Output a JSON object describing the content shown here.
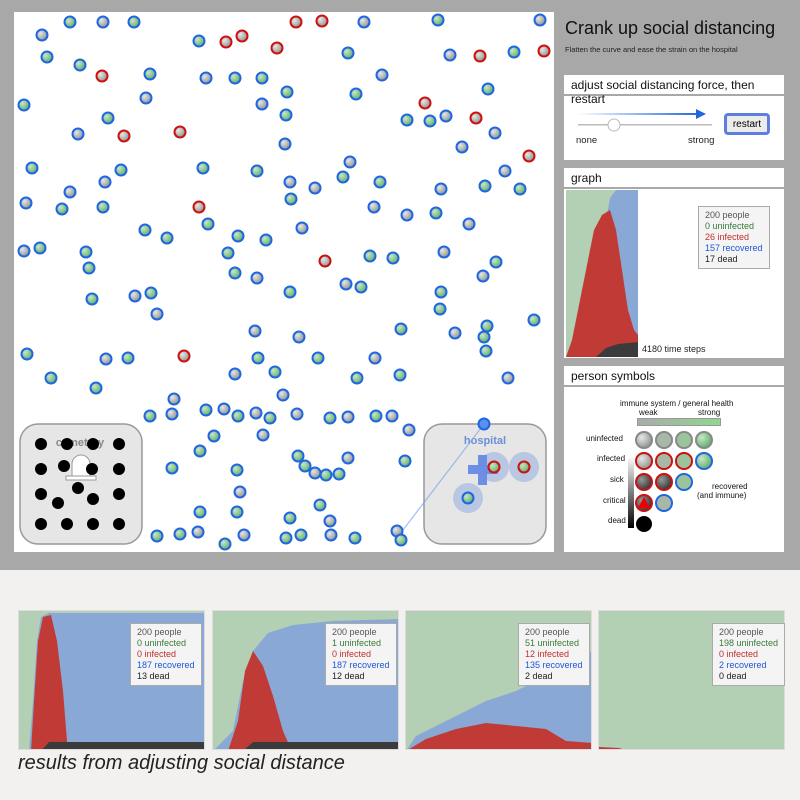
{
  "header": {
    "title": "Crank up social distancing",
    "subtitle": "Flatten the curve and ease the strain on the hospital"
  },
  "controls": {
    "heading": "adjust social distancing force, then restart",
    "slider_min_label": "none",
    "slider_max_label": "strong",
    "slider_value_fraction": 0.25,
    "restart_label": "restart"
  },
  "simulation": {
    "cemetery_label": "cemetery",
    "hospital_label": "hospital"
  },
  "graph": {
    "heading": "graph",
    "people": "200 people",
    "uninfected": "0 uninfected",
    "infected": "26 infected",
    "recovered": "157 recovered",
    "dead": "17 dead",
    "time_steps": "4180 time steps"
  },
  "symbols": {
    "heading": "person symbols",
    "axis_label": "immune system / general health",
    "weak": "weak",
    "strong": "strong",
    "rows": [
      "uninfected",
      "infected",
      "sick",
      "critical",
      "dead"
    ],
    "recovered_label": "recovered",
    "recovered_sub": "(and immune)"
  },
  "results": [
    {
      "people": "200 people",
      "uninfected": "0 uninfected",
      "infected": "0 infected",
      "recovered": "187 recovered",
      "dead": "13 dead"
    },
    {
      "people": "200 people",
      "uninfected": "1 uninfected",
      "infected": "0 infected",
      "recovered": "187 recovered",
      "dead": "12 dead"
    },
    {
      "people": "200 people",
      "uninfected": "51 uninfected",
      "infected": "12 infected",
      "recovered": "135 recovered",
      "dead": "2 dead"
    },
    {
      "people": "200 people",
      "uninfected": "198 uninfected",
      "infected": "0 infected",
      "recovered": "2 recovered",
      "dead": "0 dead"
    }
  ],
  "caption": "results from adjusting social distance",
  "colors": {
    "uninfected": "#b3cfb4",
    "infected": "#c13b36",
    "recovered": "#8aa8d6",
    "dead": "#3b3b3b",
    "ring_healthy": "#1f66e0",
    "ring_infected": "#cc1111"
  }
}
